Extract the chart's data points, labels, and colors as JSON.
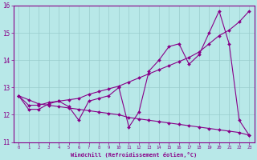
{
  "xlabel": "Windchill (Refroidissement éolien,°C)",
  "x_values": [
    0,
    1,
    2,
    3,
    4,
    5,
    6,
    7,
    8,
    9,
    10,
    11,
    12,
    13,
    14,
    15,
    16,
    17,
    18,
    19,
    20,
    21,
    22,
    23
  ],
  "y_zigzag": [
    12.7,
    12.2,
    12.2,
    12.4,
    12.5,
    12.3,
    11.8,
    12.5,
    12.6,
    12.7,
    13.0,
    11.55,
    12.1,
    13.6,
    14.0,
    14.5,
    14.6,
    13.85,
    14.2,
    15.0,
    15.8,
    14.6,
    11.8,
    11.25
  ],
  "y_rise": [
    12.7,
    12.35,
    12.35,
    12.45,
    12.5,
    12.55,
    12.6,
    12.75,
    12.85,
    12.95,
    13.05,
    13.2,
    13.35,
    13.5,
    13.65,
    13.8,
    13.95,
    14.1,
    14.3,
    14.6,
    14.9,
    15.1,
    15.4,
    15.8
  ],
  "y_decline": [
    12.7,
    12.55,
    12.4,
    12.35,
    12.3,
    12.25,
    12.2,
    12.15,
    12.1,
    12.05,
    12.0,
    11.9,
    11.85,
    11.8,
    11.75,
    11.7,
    11.65,
    11.6,
    11.55,
    11.5,
    11.45,
    11.4,
    11.35,
    11.25
  ],
  "line_color": "#880088",
  "bg_color": "#b8e8e8",
  "grid_color": "#99cccc",
  "ylim": [
    11.0,
    16.0
  ],
  "yticks": [
    11,
    12,
    13,
    14,
    15,
    16
  ],
  "xlim": [
    -0.5,
    23.5
  ],
  "figsize": [
    3.2,
    2.0
  ],
  "dpi": 100
}
